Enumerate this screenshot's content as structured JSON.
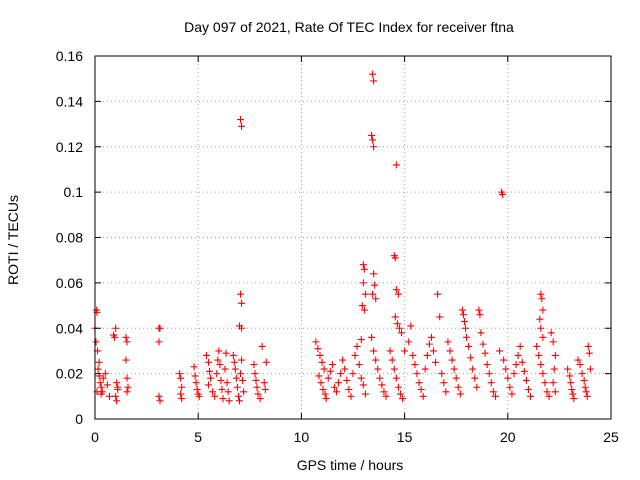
{
  "chart_data": {
    "type": "scatter",
    "title": "Day 097 of 2021, Rate Of TEC Index for receiver ftna",
    "xlabel": "GPS time / hours",
    "ylabel": "ROTI / TECUs",
    "xlim": [
      0,
      25
    ],
    "ylim": [
      0,
      0.16
    ],
    "x_ticks": [
      "0",
      "5",
      "10",
      "15",
      "20",
      "25"
    ],
    "y_ticks": [
      "0",
      "0.02",
      "0.04",
      "0.06",
      "0.08",
      "0.1",
      "0.12",
      "0.14",
      "0.16"
    ],
    "x_tick_values": [
      0,
      5,
      10,
      15,
      20,
      25
    ],
    "y_tick_values": [
      0,
      0.02,
      0.04,
      0.06,
      0.08,
      0.1,
      0.12,
      0.14,
      0.16
    ],
    "grid": true,
    "marker": "plus",
    "color": "#ff0000",
    "series": [
      {
        "name": "",
        "points": [
          [
            0.0,
            0.04
          ],
          [
            0.05,
            0.034
          ],
          [
            0.08,
            0.048
          ],
          [
            0.1,
            0.047
          ],
          [
            0.12,
            0.03
          ],
          [
            0.15,
            0.022
          ],
          [
            0.2,
            0.019
          ],
          [
            0.25,
            0.016
          ],
          [
            0.3,
            0.014
          ],
          [
            0.35,
            0.012
          ],
          [
            0.4,
            0.018
          ],
          [
            0.5,
            0.02
          ],
          [
            0.6,
            0.015
          ],
          [
            0.7,
            0.01
          ],
          [
            0.1,
            0.012
          ],
          [
            0.2,
            0.025
          ],
          [
            0.3,
            0.011
          ],
          [
            0.9,
            0.037
          ],
          [
            0.95,
            0.036
          ],
          [
            1.0,
            0.04
          ],
          [
            1.05,
            0.016
          ],
          [
            1.1,
            0.013
          ],
          [
            1.0,
            0.01
          ],
          [
            1.05,
            0.008
          ],
          [
            1.1,
            0.014
          ],
          [
            1.5,
            0.036
          ],
          [
            1.55,
            0.034
          ],
          [
            1.5,
            0.026
          ],
          [
            1.55,
            0.018
          ],
          [
            1.6,
            0.014
          ],
          [
            1.55,
            0.012
          ],
          [
            3.1,
            0.04
          ],
          [
            3.15,
            0.04
          ],
          [
            3.1,
            0.034
          ],
          [
            3.1,
            0.01
          ],
          [
            3.15,
            0.008
          ],
          [
            4.1,
            0.02
          ],
          [
            4.15,
            0.018
          ],
          [
            4.2,
            0.014
          ],
          [
            4.15,
            0.011
          ],
          [
            4.2,
            0.009
          ],
          [
            4.8,
            0.023
          ],
          [
            4.85,
            0.019
          ],
          [
            4.9,
            0.016
          ],
          [
            4.95,
            0.013
          ],
          [
            5.0,
            0.011
          ],
          [
            5.05,
            0.01
          ],
          [
            5.4,
            0.028
          ],
          [
            5.5,
            0.025
          ],
          [
            5.55,
            0.021
          ],
          [
            5.6,
            0.018
          ],
          [
            5.5,
            0.015
          ],
          [
            5.7,
            0.012
          ],
          [
            5.8,
            0.01
          ],
          [
            5.9,
            0.02
          ],
          [
            5.95,
            0.026
          ],
          [
            6.0,
            0.03
          ],
          [
            6.05,
            0.024
          ],
          [
            6.1,
            0.017
          ],
          [
            6.15,
            0.013
          ],
          [
            6.2,
            0.009
          ],
          [
            6.3,
            0.022
          ],
          [
            6.35,
            0.029
          ],
          [
            6.4,
            0.016
          ],
          [
            6.45,
            0.012
          ],
          [
            6.5,
            0.008
          ],
          [
            6.7,
            0.028
          ],
          [
            6.75,
            0.025
          ],
          [
            6.8,
            0.022
          ],
          [
            6.85,
            0.018
          ],
          [
            6.9,
            0.014
          ],
          [
            6.95,
            0.01
          ],
          [
            7.0,
            0.008
          ],
          [
            7.05,
            0.02
          ],
          [
            7.1,
            0.026
          ],
          [
            7.15,
            0.017
          ],
          [
            7.2,
            0.012
          ],
          [
            7.05,
            0.132
          ],
          [
            7.1,
            0.129
          ],
          [
            7.05,
            0.055
          ],
          [
            7.1,
            0.051
          ],
          [
            7.0,
            0.041
          ],
          [
            7.1,
            0.04
          ],
          [
            7.7,
            0.024
          ],
          [
            7.75,
            0.02
          ],
          [
            7.8,
            0.017
          ],
          [
            7.85,
            0.014
          ],
          [
            7.9,
            0.011
          ],
          [
            8.0,
            0.009
          ],
          [
            8.1,
            0.032
          ],
          [
            8.2,
            0.016
          ],
          [
            8.3,
            0.025
          ],
          [
            8.25,
            0.013
          ],
          [
            10.7,
            0.034
          ],
          [
            10.8,
            0.031
          ],
          [
            10.9,
            0.028
          ],
          [
            11.0,
            0.025
          ],
          [
            11.1,
            0.022
          ],
          [
            10.85,
            0.019
          ],
          [
            10.95,
            0.016
          ],
          [
            11.05,
            0.013
          ],
          [
            11.15,
            0.011
          ],
          [
            11.2,
            0.009
          ],
          [
            11.3,
            0.018
          ],
          [
            11.4,
            0.021
          ],
          [
            11.5,
            0.024
          ],
          [
            11.6,
            0.014
          ],
          [
            11.7,
            0.012
          ],
          [
            11.8,
            0.016
          ],
          [
            11.9,
            0.02
          ],
          [
            12.0,
            0.026
          ],
          [
            12.1,
            0.022
          ],
          [
            12.2,
            0.017
          ],
          [
            12.3,
            0.013
          ],
          [
            12.4,
            0.01
          ],
          [
            12.5,
            0.02
          ],
          [
            12.6,
            0.028
          ],
          [
            12.7,
            0.032
          ],
          [
            12.8,
            0.024
          ],
          [
            12.9,
            0.018
          ],
          [
            13.0,
            0.015
          ],
          [
            13.1,
            0.011
          ],
          [
            13.0,
            0.068
          ],
          [
            13.05,
            0.066
          ],
          [
            13.0,
            0.06
          ],
          [
            13.1,
            0.055
          ],
          [
            12.95,
            0.05
          ],
          [
            13.05,
            0.048
          ],
          [
            12.9,
            0.035
          ],
          [
            13.45,
            0.152
          ],
          [
            13.5,
            0.149
          ],
          [
            13.4,
            0.125
          ],
          [
            13.45,
            0.123
          ],
          [
            13.5,
            0.12
          ],
          [
            13.5,
            0.064
          ],
          [
            13.55,
            0.059
          ],
          [
            13.45,
            0.055
          ],
          [
            13.6,
            0.053
          ],
          [
            13.4,
            0.036
          ],
          [
            13.5,
            0.03
          ],
          [
            13.6,
            0.026
          ],
          [
            13.7,
            0.022
          ],
          [
            13.8,
            0.018
          ],
          [
            13.9,
            0.015
          ],
          [
            14.0,
            0.012
          ],
          [
            14.1,
            0.01
          ],
          [
            14.6,
            0.112
          ],
          [
            14.5,
            0.072
          ],
          [
            14.55,
            0.071
          ],
          [
            14.6,
            0.057
          ],
          [
            14.7,
            0.055
          ],
          [
            14.55,
            0.045
          ],
          [
            14.65,
            0.042
          ],
          [
            14.75,
            0.04
          ],
          [
            14.85,
            0.038
          ],
          [
            14.3,
            0.03
          ],
          [
            14.4,
            0.026
          ],
          [
            14.5,
            0.022
          ],
          [
            14.6,
            0.018
          ],
          [
            14.7,
            0.014
          ],
          [
            14.8,
            0.011
          ],
          [
            14.9,
            0.009
          ],
          [
            15.0,
            0.03
          ],
          [
            15.2,
            0.034
          ],
          [
            15.3,
            0.041
          ],
          [
            15.4,
            0.028
          ],
          [
            15.5,
            0.024
          ],
          [
            15.6,
            0.02
          ],
          [
            15.7,
            0.016
          ],
          [
            15.8,
            0.013
          ],
          [
            15.9,
            0.01
          ],
          [
            16.0,
            0.022
          ],
          [
            16.1,
            0.028
          ],
          [
            16.2,
            0.033
          ],
          [
            16.3,
            0.036
          ],
          [
            16.4,
            0.03
          ],
          [
            16.5,
            0.025
          ],
          [
            16.6,
            0.055
          ],
          [
            16.7,
            0.045
          ],
          [
            16.8,
            0.02
          ],
          [
            16.9,
            0.016
          ],
          [
            17.0,
            0.012
          ],
          [
            17.1,
            0.034
          ],
          [
            17.2,
            0.03
          ],
          [
            17.3,
            0.026
          ],
          [
            17.4,
            0.022
          ],
          [
            17.5,
            0.018
          ],
          [
            17.6,
            0.014
          ],
          [
            17.7,
            0.011
          ],
          [
            17.8,
            0.048
          ],
          [
            17.85,
            0.046
          ],
          [
            17.9,
            0.043
          ],
          [
            17.95,
            0.04
          ],
          [
            18.0,
            0.036
          ],
          [
            18.1,
            0.032
          ],
          [
            18.2,
            0.027
          ],
          [
            18.3,
            0.022
          ],
          [
            18.4,
            0.018
          ],
          [
            18.5,
            0.014
          ],
          [
            18.6,
            0.048
          ],
          [
            18.65,
            0.046
          ],
          [
            18.7,
            0.038
          ],
          [
            18.8,
            0.033
          ],
          [
            18.9,
            0.029
          ],
          [
            19.0,
            0.024
          ],
          [
            19.1,
            0.02
          ],
          [
            19.2,
            0.016
          ],
          [
            19.3,
            0.012
          ],
          [
            19.4,
            0.01
          ],
          [
            19.7,
            0.1
          ],
          [
            19.75,
            0.099
          ],
          [
            19.6,
            0.03
          ],
          [
            19.8,
            0.026
          ],
          [
            19.9,
            0.022
          ],
          [
            20.0,
            0.018
          ],
          [
            20.1,
            0.014
          ],
          [
            20.2,
            0.011
          ],
          [
            20.3,
            0.02
          ],
          [
            20.4,
            0.024
          ],
          [
            20.5,
            0.028
          ],
          [
            20.6,
            0.032
          ],
          [
            20.7,
            0.025
          ],
          [
            20.8,
            0.021
          ],
          [
            20.9,
            0.017
          ],
          [
            21.0,
            0.013
          ],
          [
            21.1,
            0.01
          ],
          [
            21.6,
            0.055
          ],
          [
            21.65,
            0.053
          ],
          [
            21.7,
            0.048
          ],
          [
            21.55,
            0.044
          ],
          [
            21.6,
            0.04
          ],
          [
            21.7,
            0.036
          ],
          [
            21.4,
            0.032
          ],
          [
            21.5,
            0.028
          ],
          [
            21.6,
            0.024
          ],
          [
            21.7,
            0.02
          ],
          [
            21.8,
            0.016
          ],
          [
            21.9,
            0.012
          ],
          [
            22.0,
            0.01
          ],
          [
            22.1,
            0.038
          ],
          [
            22.2,
            0.034
          ],
          [
            22.3,
            0.028
          ],
          [
            22.25,
            0.022
          ],
          [
            22.2,
            0.016
          ],
          [
            22.3,
            0.012
          ],
          [
            22.9,
            0.022
          ],
          [
            23.0,
            0.019
          ],
          [
            23.05,
            0.016
          ],
          [
            23.1,
            0.013
          ],
          [
            23.15,
            0.011
          ],
          [
            23.2,
            0.009
          ],
          [
            23.4,
            0.026
          ],
          [
            23.5,
            0.024
          ],
          [
            23.6,
            0.02
          ],
          [
            23.7,
            0.017
          ],
          [
            23.75,
            0.014
          ],
          [
            23.8,
            0.012
          ],
          [
            23.85,
            0.01
          ],
          [
            23.9,
            0.032
          ],
          [
            23.95,
            0.029
          ],
          [
            24.0,
            0.022
          ]
        ]
      }
    ]
  }
}
